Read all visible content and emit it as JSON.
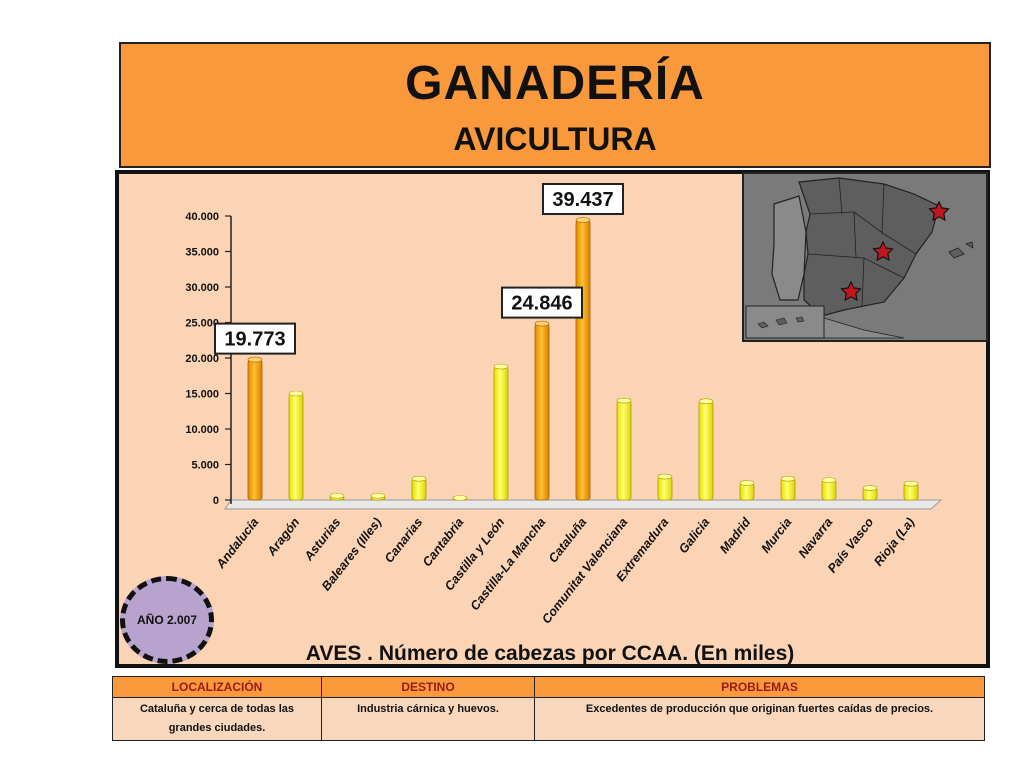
{
  "header": {
    "title": "GANADERÍA",
    "subtitle": "AVICULTURA"
  },
  "chart_data": {
    "type": "bar",
    "categories": [
      "Andalucía",
      "Aragón",
      "Asturias",
      "Baleares (Illes)",
      "Canarias",
      "Cantabria",
      "Castilla y León",
      "Castilla-La Mancha",
      "Cataluña",
      "Comunitat Valenciana",
      "Extremadura",
      "Galicia",
      "Madrid",
      "Murcia",
      "Navarra",
      "País Vasco",
      "Rioja (La)"
    ],
    "values": [
      19773,
      15000,
      600,
      600,
      3000,
      300,
      18800,
      24846,
      39437,
      14000,
      3300,
      13900,
      2400,
      3000,
      2800,
      1700,
      2300
    ],
    "highlighted": [
      "Andalucía",
      "Castilla-La Mancha",
      "Cataluña"
    ],
    "data_labels": {
      "Andalucía": "19.773",
      "Castilla-La Mancha": "24.846",
      "Cataluña": "39.437"
    },
    "yticks": [
      "0",
      "5.000",
      "10.000",
      "15.000",
      "20.000",
      "25.000",
      "30.000",
      "35.000",
      "40.000"
    ],
    "ylim": [
      0,
      40000
    ],
    "colors": {
      "highlight": "#f0a000",
      "normal": "#f7f200"
    },
    "caption": "AVES . Número de cabezas por CCAA. (En miles)"
  },
  "badge": {
    "year": "AÑO 2.007"
  },
  "map": {
    "icons": [
      "star-icon",
      "star-icon",
      "star-icon"
    ]
  },
  "table": {
    "headers": [
      "LOCALIZACIÓN",
      "DESTINO",
      "PROBLEMAS"
    ],
    "row": [
      "Cataluña y cerca de todas las grandes ciudades.",
      "Industria cárnica y huevos.",
      "Excedentes de producción que originan fuertes caídas de precios."
    ]
  }
}
